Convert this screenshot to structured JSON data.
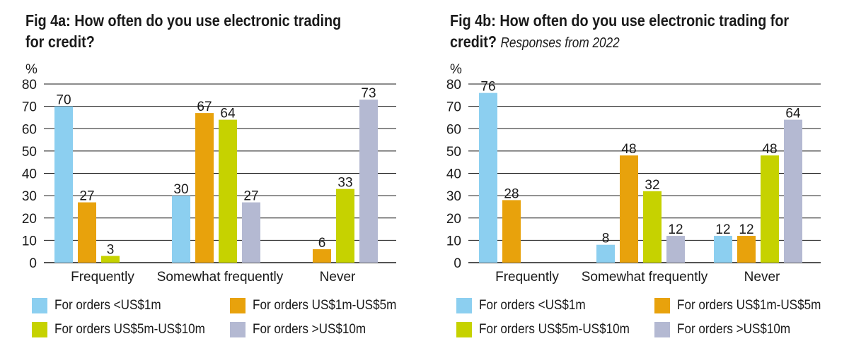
{
  "colors": {
    "series_1": "#8ccff0",
    "series_2": "#e8a20c",
    "series_3": "#c6d200",
    "series_4": "#b4b9d2",
    "grid": "#1a1a1a",
    "text": "#1a1a1a"
  },
  "chart_data": [
    {
      "type": "bar",
      "title": "Fig 4a: How often do you use electronic trading",
      "title_line2": "for credit?",
      "subtitle": "",
      "ylabel": "%",
      "xlabel": "",
      "ylim": [
        0,
        80
      ],
      "yticks": [
        0,
        10,
        20,
        30,
        40,
        50,
        60,
        70,
        80
      ],
      "grid": true,
      "legend_position": "bottom",
      "categories": [
        "Frequently",
        "Somewhat frequently",
        "Never"
      ],
      "series": [
        {
          "name": "For orders <US$1m",
          "values": [
            70,
            30,
            null
          ],
          "labels": [
            "70",
            "30",
            ""
          ]
        },
        {
          "name": "For orders US$1m-US$5m",
          "values": [
            27,
            67,
            6
          ],
          "labels": [
            "27",
            "67",
            "6"
          ]
        },
        {
          "name": "For orders US$5m-US$10m",
          "values": [
            3,
            64,
            33
          ],
          "labels": [
            "3",
            "64",
            "33"
          ]
        },
        {
          "name": "For orders >US$10m",
          "values": [
            null,
            27,
            73
          ],
          "labels": [
            "",
            "27",
            "73"
          ]
        }
      ]
    },
    {
      "type": "bar",
      "title": "Fig 4b: How often do you use electronic trading for",
      "title_line2": "credit?",
      "subtitle": "Responses from 2022",
      "ylabel": "%",
      "xlabel": "",
      "ylim": [
        0,
        80
      ],
      "yticks": [
        0,
        10,
        20,
        30,
        40,
        50,
        60,
        70,
        80
      ],
      "grid": true,
      "legend_position": "bottom",
      "categories": [
        "Frequently",
        "Somewhat frequently",
        "Never"
      ],
      "series": [
        {
          "name": "For orders <US$1m",
          "values": [
            76,
            8,
            12
          ],
          "labels": [
            "76",
            "8",
            "12"
          ]
        },
        {
          "name": "For orders US$1m-US$5m",
          "values": [
            28,
            48,
            12
          ],
          "labels": [
            "28",
            "48",
            "12"
          ]
        },
        {
          "name": "For orders US$5m-US$10m",
          "values": [
            null,
            32,
            48
          ],
          "labels": [
            "",
            "32",
            "48"
          ]
        },
        {
          "name": "For orders >US$10m",
          "values": [
            null,
            12,
            64
          ],
          "labels": [
            "",
            "12",
            "64"
          ]
        }
      ]
    }
  ]
}
